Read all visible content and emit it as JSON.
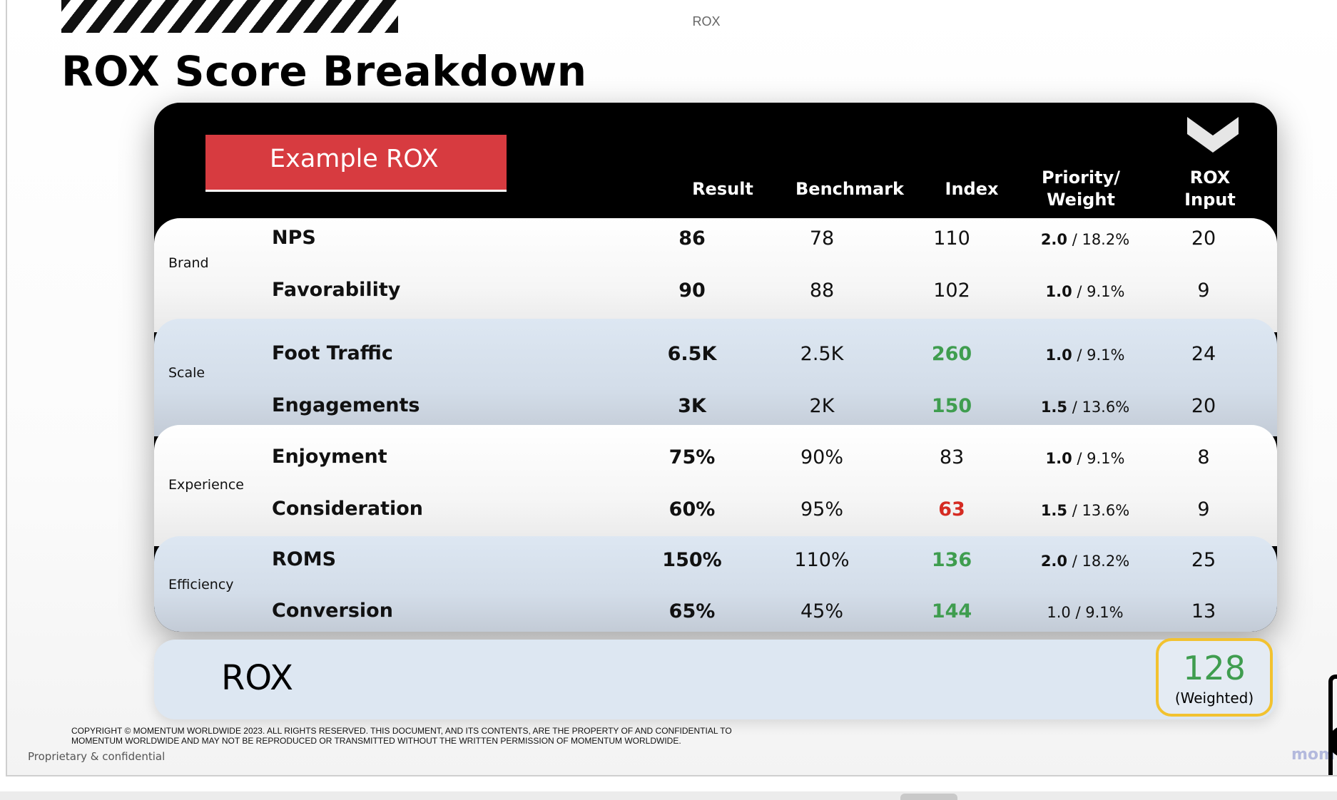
{
  "header": {
    "top_label": "ROX",
    "title": "ROX Score Breakdown"
  },
  "badge": {
    "label": "Example ROX"
  },
  "columns": {
    "result": "Result",
    "benchmark": "Benchmark",
    "index": "Index",
    "priority_line1": "Priority/",
    "priority_line2": "Weight",
    "input_line1": "ROX",
    "input_line2": "Input"
  },
  "groups": [
    {
      "label": "Brand",
      "rows": [
        {
          "metric": "NPS",
          "result": "86",
          "benchmark": "78",
          "index": "110",
          "index_color": "default",
          "priority": "2.0",
          "weight": "18.2%",
          "input": "20"
        },
        {
          "metric": "Favorability",
          "result": "90",
          "benchmark": "88",
          "index": "102",
          "index_color": "default",
          "priority": "1.0",
          "weight": "9.1%",
          "input": "9"
        }
      ]
    },
    {
      "label": "Scale",
      "rows": [
        {
          "metric": "Foot Traffic",
          "result": "6.5K",
          "benchmark": "2.5K",
          "index": "260",
          "index_color": "green",
          "priority": "1.0",
          "weight": "9.1%",
          "input": "24"
        },
        {
          "metric": "Engagements",
          "result": "3K",
          "benchmark": "2K",
          "index": "150",
          "index_color": "green",
          "priority": "1.5",
          "weight": "13.6%",
          "input": "20"
        }
      ]
    },
    {
      "label": "Experience",
      "rows": [
        {
          "metric": "Enjoyment",
          "result": "75%",
          "benchmark": "90%",
          "index": "83",
          "index_color": "default",
          "priority": "1.0",
          "weight": "9.1%",
          "input": "8"
        },
        {
          "metric": "Consideration",
          "result": "60%",
          "benchmark": "95%",
          "index": "63",
          "index_color": "red",
          "priority": "1.5",
          "weight": "13.6%",
          "input": "9"
        }
      ]
    },
    {
      "label": "Efficiency",
      "rows": [
        {
          "metric": "ROMS",
          "result": "150%",
          "benchmark": "110%",
          "index": "136",
          "index_color": "green",
          "priority": "2.0",
          "weight": "18.2%",
          "input": "25"
        },
        {
          "metric": "Conversion",
          "result": "65%",
          "benchmark": "45%",
          "index": "144",
          "index_color": "green",
          "priority": "1.0",
          "weight": "9.1%",
          "input": "13"
        }
      ]
    }
  ],
  "total": {
    "label": "ROX",
    "score": "128",
    "score_note": "(Weighted)"
  },
  "footer": {
    "copyright_line1": "COPYRIGHT © MOMENTUM WORLDWIDE 2023. ALL RIGHTS RESERVED. THIS DOCUMENT, AND ITS CONTENTS, ARE THE PROPERTY OF AND CONFIDENTIAL TO",
    "copyright_line2": "MOMENTUM WORLDWIDE AND MAY NOT BE REPRODUCED OR TRANSMITTED WITHOUT THE WRITTEN PERMISSION OF MOMENTUM WORLDWIDE.",
    "confidential": "Proprietary & confidential",
    "logo_fragment": "mom"
  },
  "colors": {
    "badge_red": "#d73b40",
    "index_green": "#3f9d4f",
    "index_red": "#d52b22",
    "score_outline": "#f2c230",
    "band_blue": "#dde7f2"
  }
}
